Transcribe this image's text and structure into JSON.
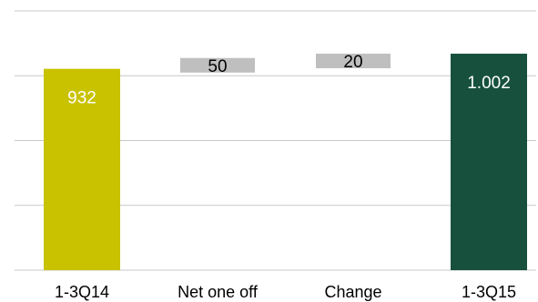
{
  "chart_data": {
    "type": "bar",
    "subtype": "waterfall",
    "title": "",
    "xlabel": "",
    "ylabel": "",
    "categories": [
      "1-3Q14",
      "Net one off",
      "Change",
      "1-3Q15"
    ],
    "values": [
      932,
      50,
      20,
      1002
    ],
    "labels": [
      "932",
      "50",
      "20",
      "1.002"
    ],
    "bar_kinds": [
      "total",
      "delta",
      "delta",
      "total"
    ],
    "ylim": [
      0,
      1200
    ],
    "grid": true,
    "legend": "none"
  },
  "colors": {
    "start_bar": "#c8c200",
    "delta_bar": "#bfbfbf",
    "end_bar": "#17513e",
    "gridline": "#c8c8c8",
    "total_label": "#ffffff",
    "delta_label": "#000000"
  }
}
